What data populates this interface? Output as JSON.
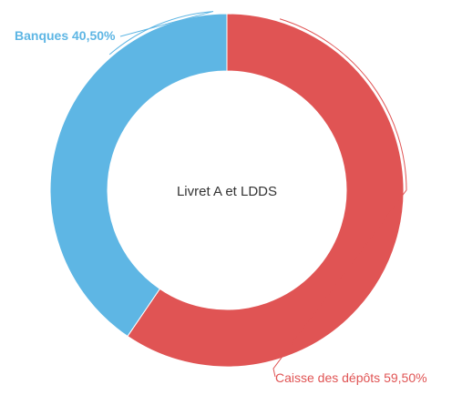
{
  "chart_data": {
    "type": "pie",
    "donut": true,
    "title": "Livret A et LDDS",
    "slices": [
      {
        "label": "Caisse des dépôts",
        "value": 59.5,
        "display": "Caisse des dépôts 59,50%",
        "color": "#e05454"
      },
      {
        "label": "Banques",
        "value": 40.5,
        "display": "Banques 40,50%",
        "color": "#5eb6e4"
      }
    ],
    "legend": "none",
    "labels": "outside"
  }
}
